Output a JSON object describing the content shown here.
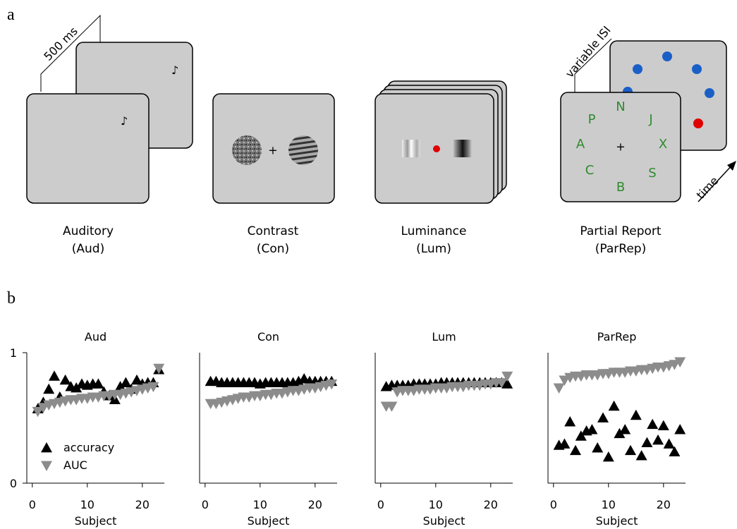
{
  "panel_labels": [
    "a",
    "b"
  ],
  "tasks": [
    {
      "name": "Auditory",
      "abbr": "(Aud)"
    },
    {
      "name": "Contrast",
      "abbr": "(Con)"
    },
    {
      "name": "Luminance",
      "abbr": "(Lum)"
    },
    {
      "name": "Partial Report",
      "abbr": "(ParRep)"
    }
  ],
  "diagram": {
    "aud_interval": "500 ms",
    "parrep_interval": "variable ISI",
    "time_axis": "time",
    "fixation": "+",
    "letters": [
      "N",
      "J",
      "X",
      "S",
      "B",
      "C",
      "A",
      "P"
    ]
  },
  "chart_data": [
    {
      "type": "scatter",
      "title": "Aud",
      "x": [
        1,
        2,
        3,
        4,
        5,
        6,
        7,
        8,
        9,
        10,
        11,
        12,
        13,
        14,
        15,
        16,
        17,
        18,
        19,
        20,
        21,
        22,
        23
      ],
      "series": [
        {
          "name": "accuracy",
          "color": "#000000",
          "marker": "triangle-up",
          "values": [
            0.57,
            0.62,
            0.72,
            0.82,
            0.66,
            0.79,
            0.74,
            0.73,
            0.76,
            0.75,
            0.76,
            0.76,
            0.7,
            0.67,
            0.64,
            0.74,
            0.77,
            0.72,
            0.79,
            0.76,
            0.77,
            0.77,
            0.87
          ]
        },
        {
          "name": "AUC",
          "color": "#8c8c8c",
          "marker": "triangle-down",
          "values": [
            0.55,
            0.58,
            0.6,
            0.61,
            0.62,
            0.63,
            0.64,
            0.64,
            0.65,
            0.65,
            0.66,
            0.66,
            0.67,
            0.67,
            0.68,
            0.68,
            0.69,
            0.7,
            0.71,
            0.72,
            0.73,
            0.74,
            0.88
          ]
        }
      ],
      "xlim": [
        -1,
        24
      ],
      "ylim": [
        0,
        1
      ],
      "xticks": [
        0,
        10,
        20
      ],
      "yticks": [
        0,
        1
      ],
      "xlabel": "Subject",
      "legend": "lower left"
    },
    {
      "type": "scatter",
      "title": "Con",
      "x": [
        1,
        2,
        3,
        4,
        5,
        6,
        7,
        8,
        9,
        10,
        11,
        12,
        13,
        14,
        15,
        16,
        17,
        18,
        19,
        20,
        21,
        22,
        23
      ],
      "series": [
        {
          "name": "accuracy",
          "color": "#000000",
          "marker": "triangle-up",
          "values": [
            0.78,
            0.78,
            0.77,
            0.77,
            0.77,
            0.77,
            0.77,
            0.77,
            0.77,
            0.76,
            0.77,
            0.77,
            0.77,
            0.77,
            0.77,
            0.77,
            0.78,
            0.8,
            0.78,
            0.78,
            0.78,
            0.78,
            0.78
          ]
        },
        {
          "name": "AUC",
          "color": "#8c8c8c",
          "marker": "triangle-down",
          "values": [
            0.61,
            0.61,
            0.62,
            0.63,
            0.64,
            0.65,
            0.66,
            0.66,
            0.67,
            0.67,
            0.68,
            0.68,
            0.69,
            0.69,
            0.7,
            0.71,
            0.71,
            0.72,
            0.73,
            0.73,
            0.74,
            0.75,
            0.76
          ]
        }
      ],
      "xlim": [
        -1,
        24
      ],
      "ylim": [
        0,
        1
      ],
      "xticks": [
        0,
        10,
        20
      ],
      "xlabel": "Subject"
    },
    {
      "type": "scatter",
      "title": "Lum",
      "x": [
        1,
        2,
        3,
        4,
        5,
        6,
        7,
        8,
        9,
        10,
        11,
        12,
        13,
        14,
        15,
        16,
        17,
        18,
        19,
        20,
        21,
        22,
        23
      ],
      "series": [
        {
          "name": "accuracy",
          "color": "#000000",
          "marker": "triangle-up",
          "values": [
            0.74,
            0.75,
            0.75,
            0.75,
            0.75,
            0.76,
            0.76,
            0.76,
            0.76,
            0.76,
            0.77,
            0.77,
            0.77,
            0.77,
            0.77,
            0.77,
            0.77,
            0.77,
            0.77,
            0.77,
            0.77,
            0.77,
            0.76
          ]
        },
        {
          "name": "AUC",
          "color": "#8c8c8c",
          "marker": "triangle-down",
          "values": [
            0.59,
            0.59,
            0.7,
            0.71,
            0.71,
            0.71,
            0.72,
            0.72,
            0.72,
            0.73,
            0.73,
            0.73,
            0.74,
            0.74,
            0.74,
            0.75,
            0.75,
            0.75,
            0.76,
            0.76,
            0.77,
            0.77,
            0.82
          ]
        }
      ],
      "xlim": [
        -1,
        24
      ],
      "ylim": [
        0,
        1
      ],
      "xticks": [
        0,
        10,
        20
      ],
      "xlabel": "Subject"
    },
    {
      "type": "scatter",
      "title": "ParRep",
      "x": [
        1,
        2,
        3,
        4,
        5,
        6,
        7,
        8,
        9,
        10,
        11,
        12,
        13,
        14,
        15,
        16,
        17,
        18,
        19,
        20,
        21,
        22,
        23
      ],
      "series": [
        {
          "name": "accuracy",
          "color": "#000000",
          "marker": "triangle-up",
          "values": [
            0.29,
            0.3,
            0.47,
            0.25,
            0.36,
            0.4,
            0.41,
            0.27,
            0.5,
            0.2,
            0.59,
            0.38,
            0.41,
            0.25,
            0.52,
            0.21,
            0.31,
            0.45,
            0.33,
            0.44,
            0.3,
            0.24,
            0.41
          ]
        },
        {
          "name": "AUC",
          "color": "#8c8c8c",
          "marker": "triangle-down",
          "values": [
            0.73,
            0.79,
            0.81,
            0.82,
            0.82,
            0.83,
            0.83,
            0.83,
            0.84,
            0.84,
            0.85,
            0.85,
            0.85,
            0.86,
            0.86,
            0.87,
            0.87,
            0.88,
            0.89,
            0.89,
            0.9,
            0.91,
            0.93
          ]
        }
      ],
      "xlim": [
        -1,
        24
      ],
      "ylim": [
        0,
        1
      ],
      "xticks": [
        0,
        10,
        20
      ],
      "xlabel": "Subject"
    }
  ]
}
